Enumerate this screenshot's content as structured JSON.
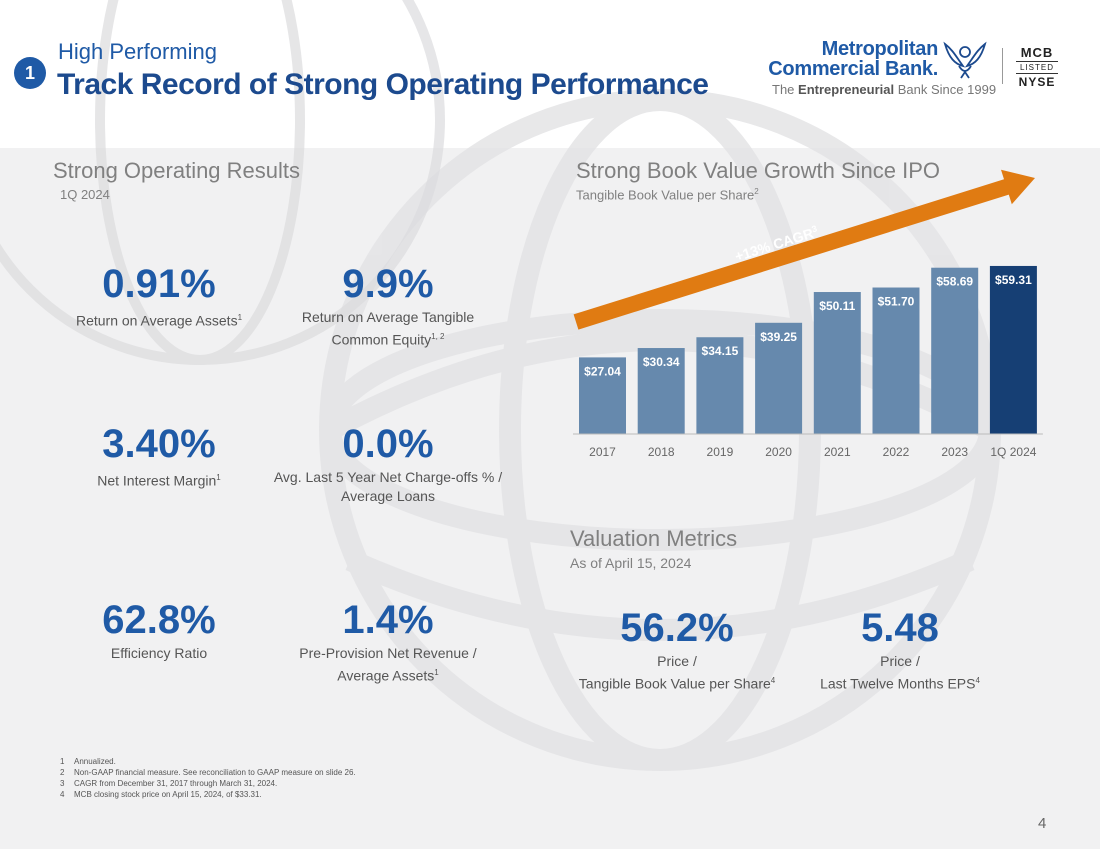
{
  "header": {
    "section_number": "1",
    "kicker": "High Performing",
    "title": "Track Record of Strong Operating Performance"
  },
  "logo": {
    "line1": "Metropolitan",
    "line2": "Commercial Bank.",
    "tagline_prefix": "The",
    "tagline_bold": "Entrepreneurial",
    "tagline_suffix": "Bank Since 1999",
    "exchange_top": "MCB",
    "exchange_mid": "LISTED",
    "exchange_bottom": "NYSE"
  },
  "operating": {
    "title": "Strong Operating Results",
    "subtitle": "1Q 2024",
    "metrics": [
      {
        "value": "0.91%",
        "label": "Return on Average Assets",
        "sup": "1"
      },
      {
        "value": "9.9%",
        "label": "Return on Average Tangible",
        "label2": "Common Equity",
        "sup": "1, 2"
      },
      {
        "value": "3.40%",
        "label": "Net Interest Margin",
        "sup": "1"
      },
      {
        "value": "0.0%",
        "label": "Avg. Last 5 Year Net Charge-offs % /",
        "label2": "Average Loans"
      },
      {
        "value": "62.8%",
        "label": "Efficiency Ratio"
      },
      {
        "value": "1.4%",
        "label": "Pre-Provision Net Revenue /",
        "label2": "Average Assets",
        "sup": "1"
      }
    ]
  },
  "book_value": {
    "title": "Strong Book Value Growth Since IPO",
    "subtitle": "Tangible Book Value per Share",
    "subtitle_sup": "2"
  },
  "chart_data": {
    "type": "bar",
    "title": "Strong Book Value Growth Since IPO",
    "ylabel": "Tangible Book Value per Share",
    "categories": [
      "2017",
      "2018",
      "2019",
      "2020",
      "2021",
      "2022",
      "2023",
      "1Q 2024"
    ],
    "values": [
      27.04,
      30.34,
      34.15,
      39.25,
      50.11,
      51.7,
      58.69,
      59.31
    ],
    "value_labels": [
      "$27.04",
      "$30.34",
      "$34.15",
      "$39.25",
      "$50.11",
      "$51.70",
      "$58.69",
      "$59.31"
    ],
    "ylim": [
      0,
      60
    ],
    "annotation": "+13% CAGR",
    "annotation_sup": "3",
    "colors": {
      "bar": "#6689ad",
      "highlight": "#163f74",
      "arrow": "#e07b12"
    }
  },
  "valuation": {
    "title": "Valuation Metrics",
    "subtitle": "As of April 15, 2024",
    "metrics": [
      {
        "value": "56.2%",
        "label": "Price /",
        "label2": "Tangible Book Value per Share",
        "sup": "4"
      },
      {
        "value": "5.48",
        "label": "Price /",
        "label2": "Last Twelve Months EPS",
        "sup": "4"
      }
    ]
  },
  "footnotes": [
    {
      "num": "1",
      "text": "Annualized."
    },
    {
      "num": "2",
      "text": "Non-GAAP financial measure. See reconciliation to GAAP measure on slide 26."
    },
    {
      "num": "3",
      "text": "CAGR from December 31, 2017 through March 31, 2024."
    },
    {
      "num": "4",
      "text": "MCB closing stock price on April 15, 2024, of $33.31."
    }
  ],
  "page_number": "4",
  "colors": {
    "brand": "#1f5aa6",
    "title": "#1c4a8e",
    "muted": "#808080"
  }
}
